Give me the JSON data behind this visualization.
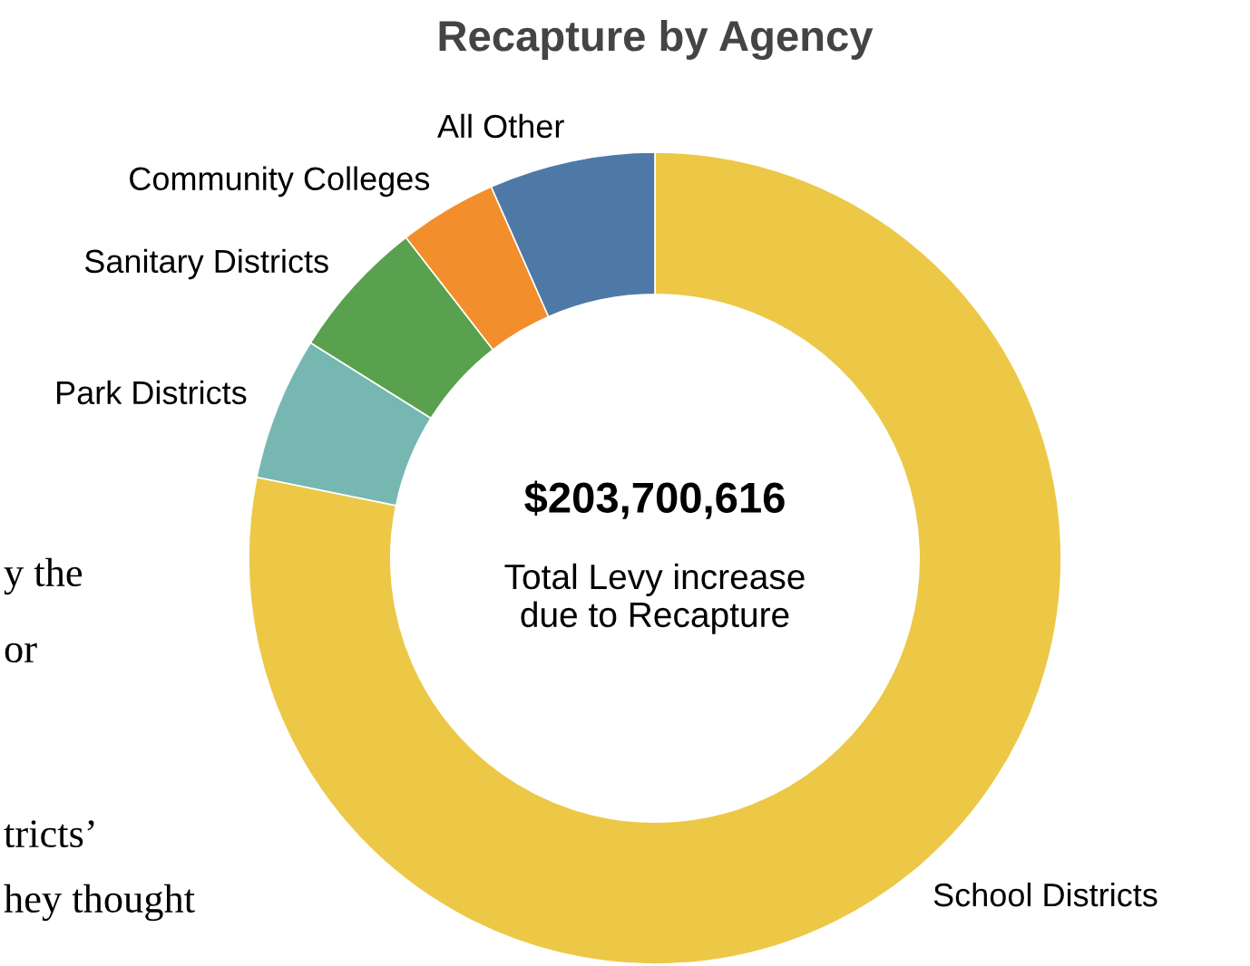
{
  "chart_data": {
    "type": "donut",
    "title": "Recapture by Agency",
    "categories": [
      "School Districts",
      "Park Districts",
      "Sanitary Districts",
      "Community Colleges",
      "All Other"
    ],
    "values": [
      78.2,
      5.7,
      5.6,
      3.9,
      6.6
    ],
    "colors": [
      "#ecc846",
      "#76b7b2",
      "#59a14f",
      "#f28e2b",
      "#4e79a7"
    ],
    "legend": false,
    "annotations": [
      "$203,700,616",
      "Total Levy increase\ndue to Recapture",
      "y the",
      "or",
      "tricts’",
      "hey thought"
    ]
  }
}
